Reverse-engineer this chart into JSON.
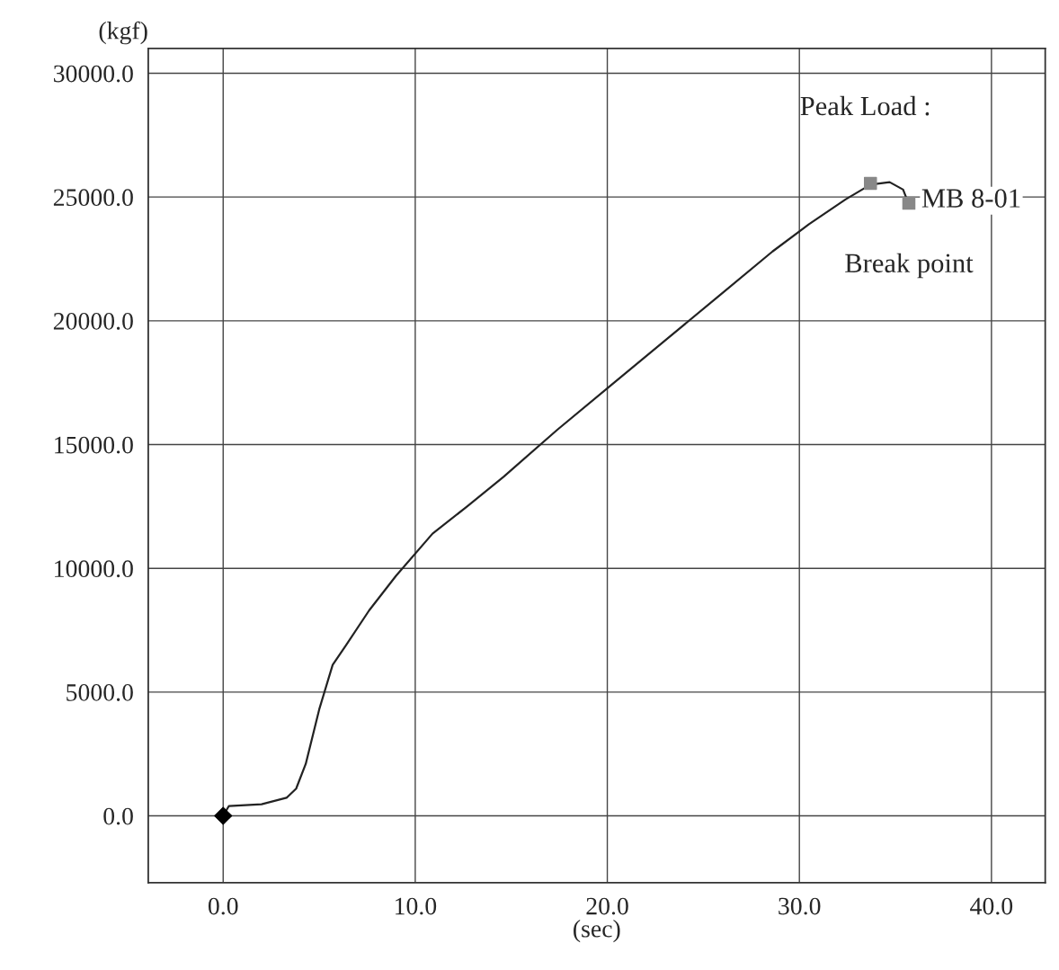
{
  "chart_data": {
    "type": "line",
    "xlabel": "(sec)",
    "ylabel": "(kgf)",
    "xlim": [
      -3.9,
      42.8
    ],
    "ylim": [
      -2700,
      31000
    ],
    "xticks": [
      {
        "value": 0,
        "label": "0.0"
      },
      {
        "value": 10,
        "label": "10.0"
      },
      {
        "value": 20,
        "label": "20.0"
      },
      {
        "value": 30,
        "label": "30.0"
      },
      {
        "value": 40,
        "label": "40.0"
      }
    ],
    "yticks": [
      {
        "value": 0,
        "label": "0.0"
      },
      {
        "value": 5000,
        "label": "5000.0"
      },
      {
        "value": 10000,
        "label": "10000.0"
      },
      {
        "value": 15000,
        "label": "15000.0"
      },
      {
        "value": 20000,
        "label": "20000.0"
      },
      {
        "value": 25000,
        "label": "25000.0"
      },
      {
        "value": 30000,
        "label": "30000.0"
      }
    ],
    "grid": true,
    "legend": false,
    "series": [
      {
        "name": "MB 8-01",
        "color": "#222222",
        "marker": "none",
        "line_style": "solid",
        "x": [
          0,
          0.3,
          2.0,
          3.3,
          3.8,
          4.3,
          5.0,
          5.7,
          6.4,
          7.6,
          9.0,
          10.9,
          12.7,
          14.6,
          17.4,
          20.2,
          23.0,
          25.8,
          28.6,
          30.5,
          32.4,
          33.7,
          34.7,
          35.4,
          35.7
        ],
        "values": [
          0,
          400,
          470,
          730,
          1100,
          2100,
          4300,
          6100,
          6900,
          8300,
          9700,
          11400,
          12500,
          13700,
          15600,
          17400,
          19200,
          21000,
          22800,
          23900,
          24900,
          25500,
          25600,
          25300,
          24700
        ]
      },
      {
        "type": "scatter",
        "color": "#000000",
        "marker": "diamond",
        "x": [
          0
        ],
        "values": [
          0
        ]
      },
      {
        "type": "scatter",
        "color": "#888888",
        "marker": "square",
        "x": [
          33.7,
          35.7
        ],
        "values": [
          25550,
          24750
        ]
      }
    ],
    "annotations": [
      {
        "text": "Peak Load :",
        "x": 33.7,
        "y": 25550
      },
      {
        "text": "Break point",
        "x": 35.7,
        "y": 24750
      }
    ]
  }
}
